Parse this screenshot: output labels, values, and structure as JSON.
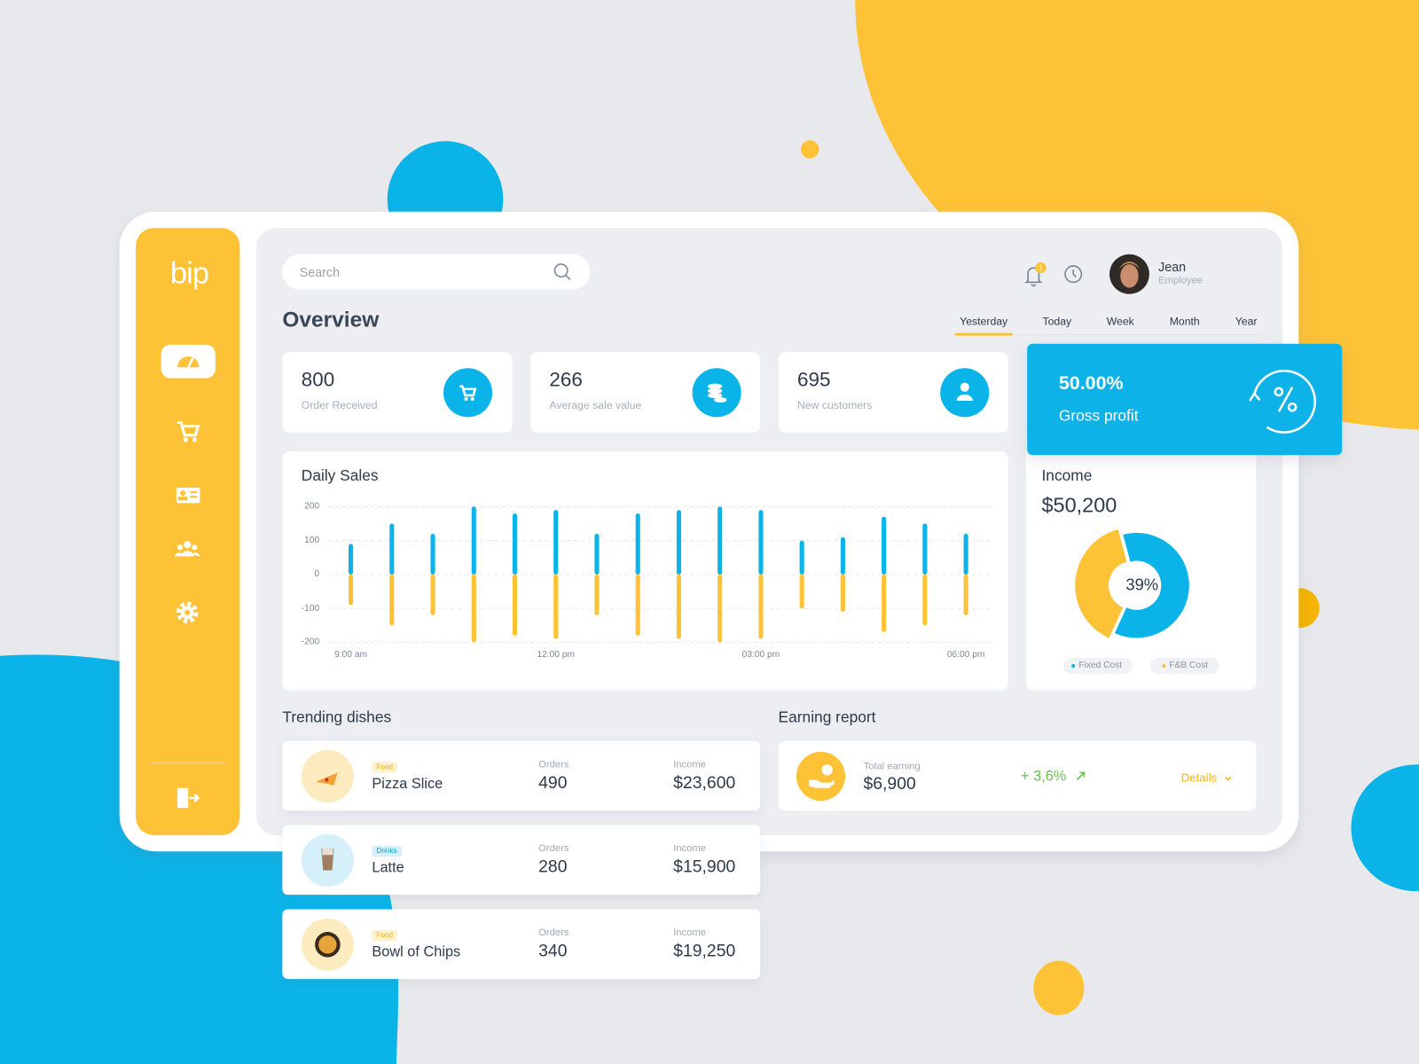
{
  "sidebar": {
    "logo": "bip"
  },
  "search": {
    "placeholder": "Search"
  },
  "notifications": {
    "badge": 1
  },
  "user": {
    "name": "Jean",
    "role": "Employee"
  },
  "overview": {
    "title": "Overview",
    "tabs": [
      "Yesterday",
      "Today",
      "Week",
      "Month",
      "Year"
    ],
    "active_tab": 0
  },
  "stats": [
    {
      "value": 800,
      "label": "Order Received"
    },
    {
      "value": 266,
      "label": "Average sale value"
    },
    {
      "value": 695,
      "label": "New customers"
    }
  ],
  "gross_profit": {
    "value": "50.00%",
    "label": "Gross profit"
  },
  "chart_data": [
    {
      "type": "bar",
      "title": "Daily Sales",
      "categories": [
        "9:00 am",
        null,
        null,
        null,
        null,
        "12:00 pm",
        null,
        null,
        null,
        null,
        "03:00 pm",
        null,
        null,
        null,
        null,
        "06:00 pm"
      ],
      "series": [
        {
          "color": "#0ab3e8",
          "values": [
            90,
            150,
            120,
            200,
            180,
            190,
            120,
            180,
            190,
            200,
            190,
            100,
            110,
            170,
            150,
            120
          ]
        },
        {
          "color": "#fdc236",
          "values": [
            -90,
            -150,
            -120,
            -200,
            -180,
            -190,
            -120,
            -180,
            -190,
            -200,
            -190,
            -100,
            -110,
            -170,
            -150,
            -120
          ]
        }
      ],
      "ylim": [
        -200,
        200
      ],
      "yticks": [
        200,
        100,
        0,
        -100,
        -200
      ],
      "grid": true
    },
    {
      "type": "pie",
      "title": "Income",
      "subtitle": "$50,200",
      "categories": [
        "Fixed Cost",
        "F&B Cost"
      ],
      "values": [
        61,
        39
      ],
      "value_labels": [
        null,
        "39%"
      ],
      "colors": [
        "#0ab3e8",
        "#fdc236"
      ]
    }
  ],
  "trending": {
    "title": "Trending dishes",
    "orders_label": "Orders",
    "income_label": "Income",
    "rows": [
      {
        "tag": "Food",
        "name": "Pizza Slice",
        "orders": 490,
        "income": "$23,600"
      },
      {
        "tag": "Drinks",
        "name": "Latte",
        "orders": 280,
        "income": "$15,900"
      },
      {
        "tag": "Food",
        "name": "Bowl of Chips",
        "orders": 340,
        "income": "$19,250"
      }
    ]
  },
  "earning": {
    "title": "Earning report",
    "label": "Total earning",
    "amount": "$6,900",
    "change": "+ 3,6%",
    "details": "Details"
  }
}
